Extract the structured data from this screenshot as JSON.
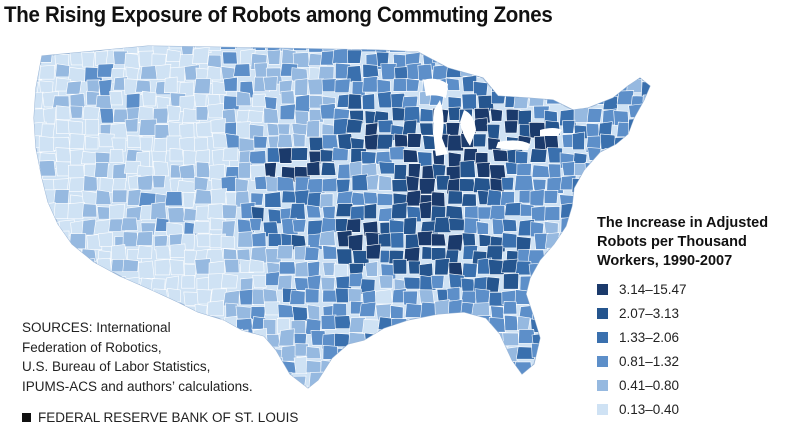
{
  "title": "The Rising Exposure of Robots among Commuting Zones",
  "legend": {
    "title_lines": [
      "The Increase in Adjusted",
      "Robots per Thousand",
      "Workers, 1990-2007"
    ],
    "items": [
      {
        "label": "3.14–15.47",
        "color": "#1b3a6b"
      },
      {
        "label": "2.07–3.13",
        "color": "#25558e"
      },
      {
        "label": "1.33–2.06",
        "color": "#3a70ae"
      },
      {
        "label": "0.81–1.32",
        "color": "#5d8fc9"
      },
      {
        "label": "0.41–0.80",
        "color": "#96b9e0"
      },
      {
        "label": "0.13–0.40",
        "color": "#cfe2f4"
      }
    ]
  },
  "sources": {
    "lines": [
      "SOURCES: International",
      "Federation of Robotics,",
      "U.S. Bureau of Labor Statistics,",
      "IPUMS-ACS and authors’ calculations."
    ]
  },
  "footer": {
    "text": "FEDERAL RESERVE BANK OF ST. LOUIS"
  },
  "map": {
    "background_color": "#cfe2f4",
    "border_color": "#ffffff"
  }
}
